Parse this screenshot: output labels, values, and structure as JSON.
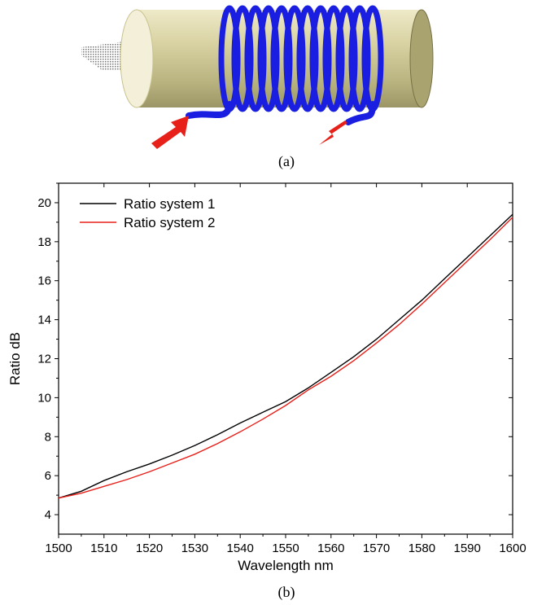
{
  "captions": {
    "a": "(a)",
    "b": "(b)"
  },
  "illustration": {
    "cylinder_color": "#d8d2a2",
    "fiber_color": "#1a1ee0",
    "arrow_color": "#e8201a",
    "coil_turns": 12
  },
  "chart_data": {
    "type": "line",
    "xlabel": "Wavelength nm",
    "ylabel": "Ratio dB",
    "xlim": [
      1500,
      1600
    ],
    "ylim": [
      3,
      21
    ],
    "xticks": [
      1500,
      1510,
      1520,
      1530,
      1540,
      1550,
      1560,
      1570,
      1580,
      1590,
      1600
    ],
    "yticks": [
      4,
      6,
      8,
      10,
      12,
      14,
      16,
      18,
      20
    ],
    "grid": false,
    "legend_position": "top-left",
    "x": [
      1500,
      1505,
      1510,
      1515,
      1520,
      1525,
      1530,
      1535,
      1540,
      1545,
      1550,
      1555,
      1560,
      1565,
      1570,
      1575,
      1580,
      1585,
      1590,
      1595,
      1600
    ],
    "series": [
      {
        "name": "Ratio system 1",
        "color": "#000000",
        "values": [
          4.85,
          5.2,
          5.75,
          6.2,
          6.6,
          7.05,
          7.55,
          8.1,
          8.7,
          9.25,
          9.8,
          10.5,
          11.3,
          12.1,
          13.0,
          14.0,
          15.0,
          16.1,
          17.2,
          18.3,
          19.4
        ]
      },
      {
        "name": "Ratio system 2",
        "color": "#e8201a",
        "values": [
          4.85,
          5.1,
          5.45,
          5.8,
          6.2,
          6.65,
          7.1,
          7.65,
          8.25,
          8.9,
          9.6,
          10.4,
          11.1,
          11.9,
          12.8,
          13.75,
          14.8,
          15.9,
          17.0,
          18.1,
          19.25
        ]
      }
    ]
  }
}
